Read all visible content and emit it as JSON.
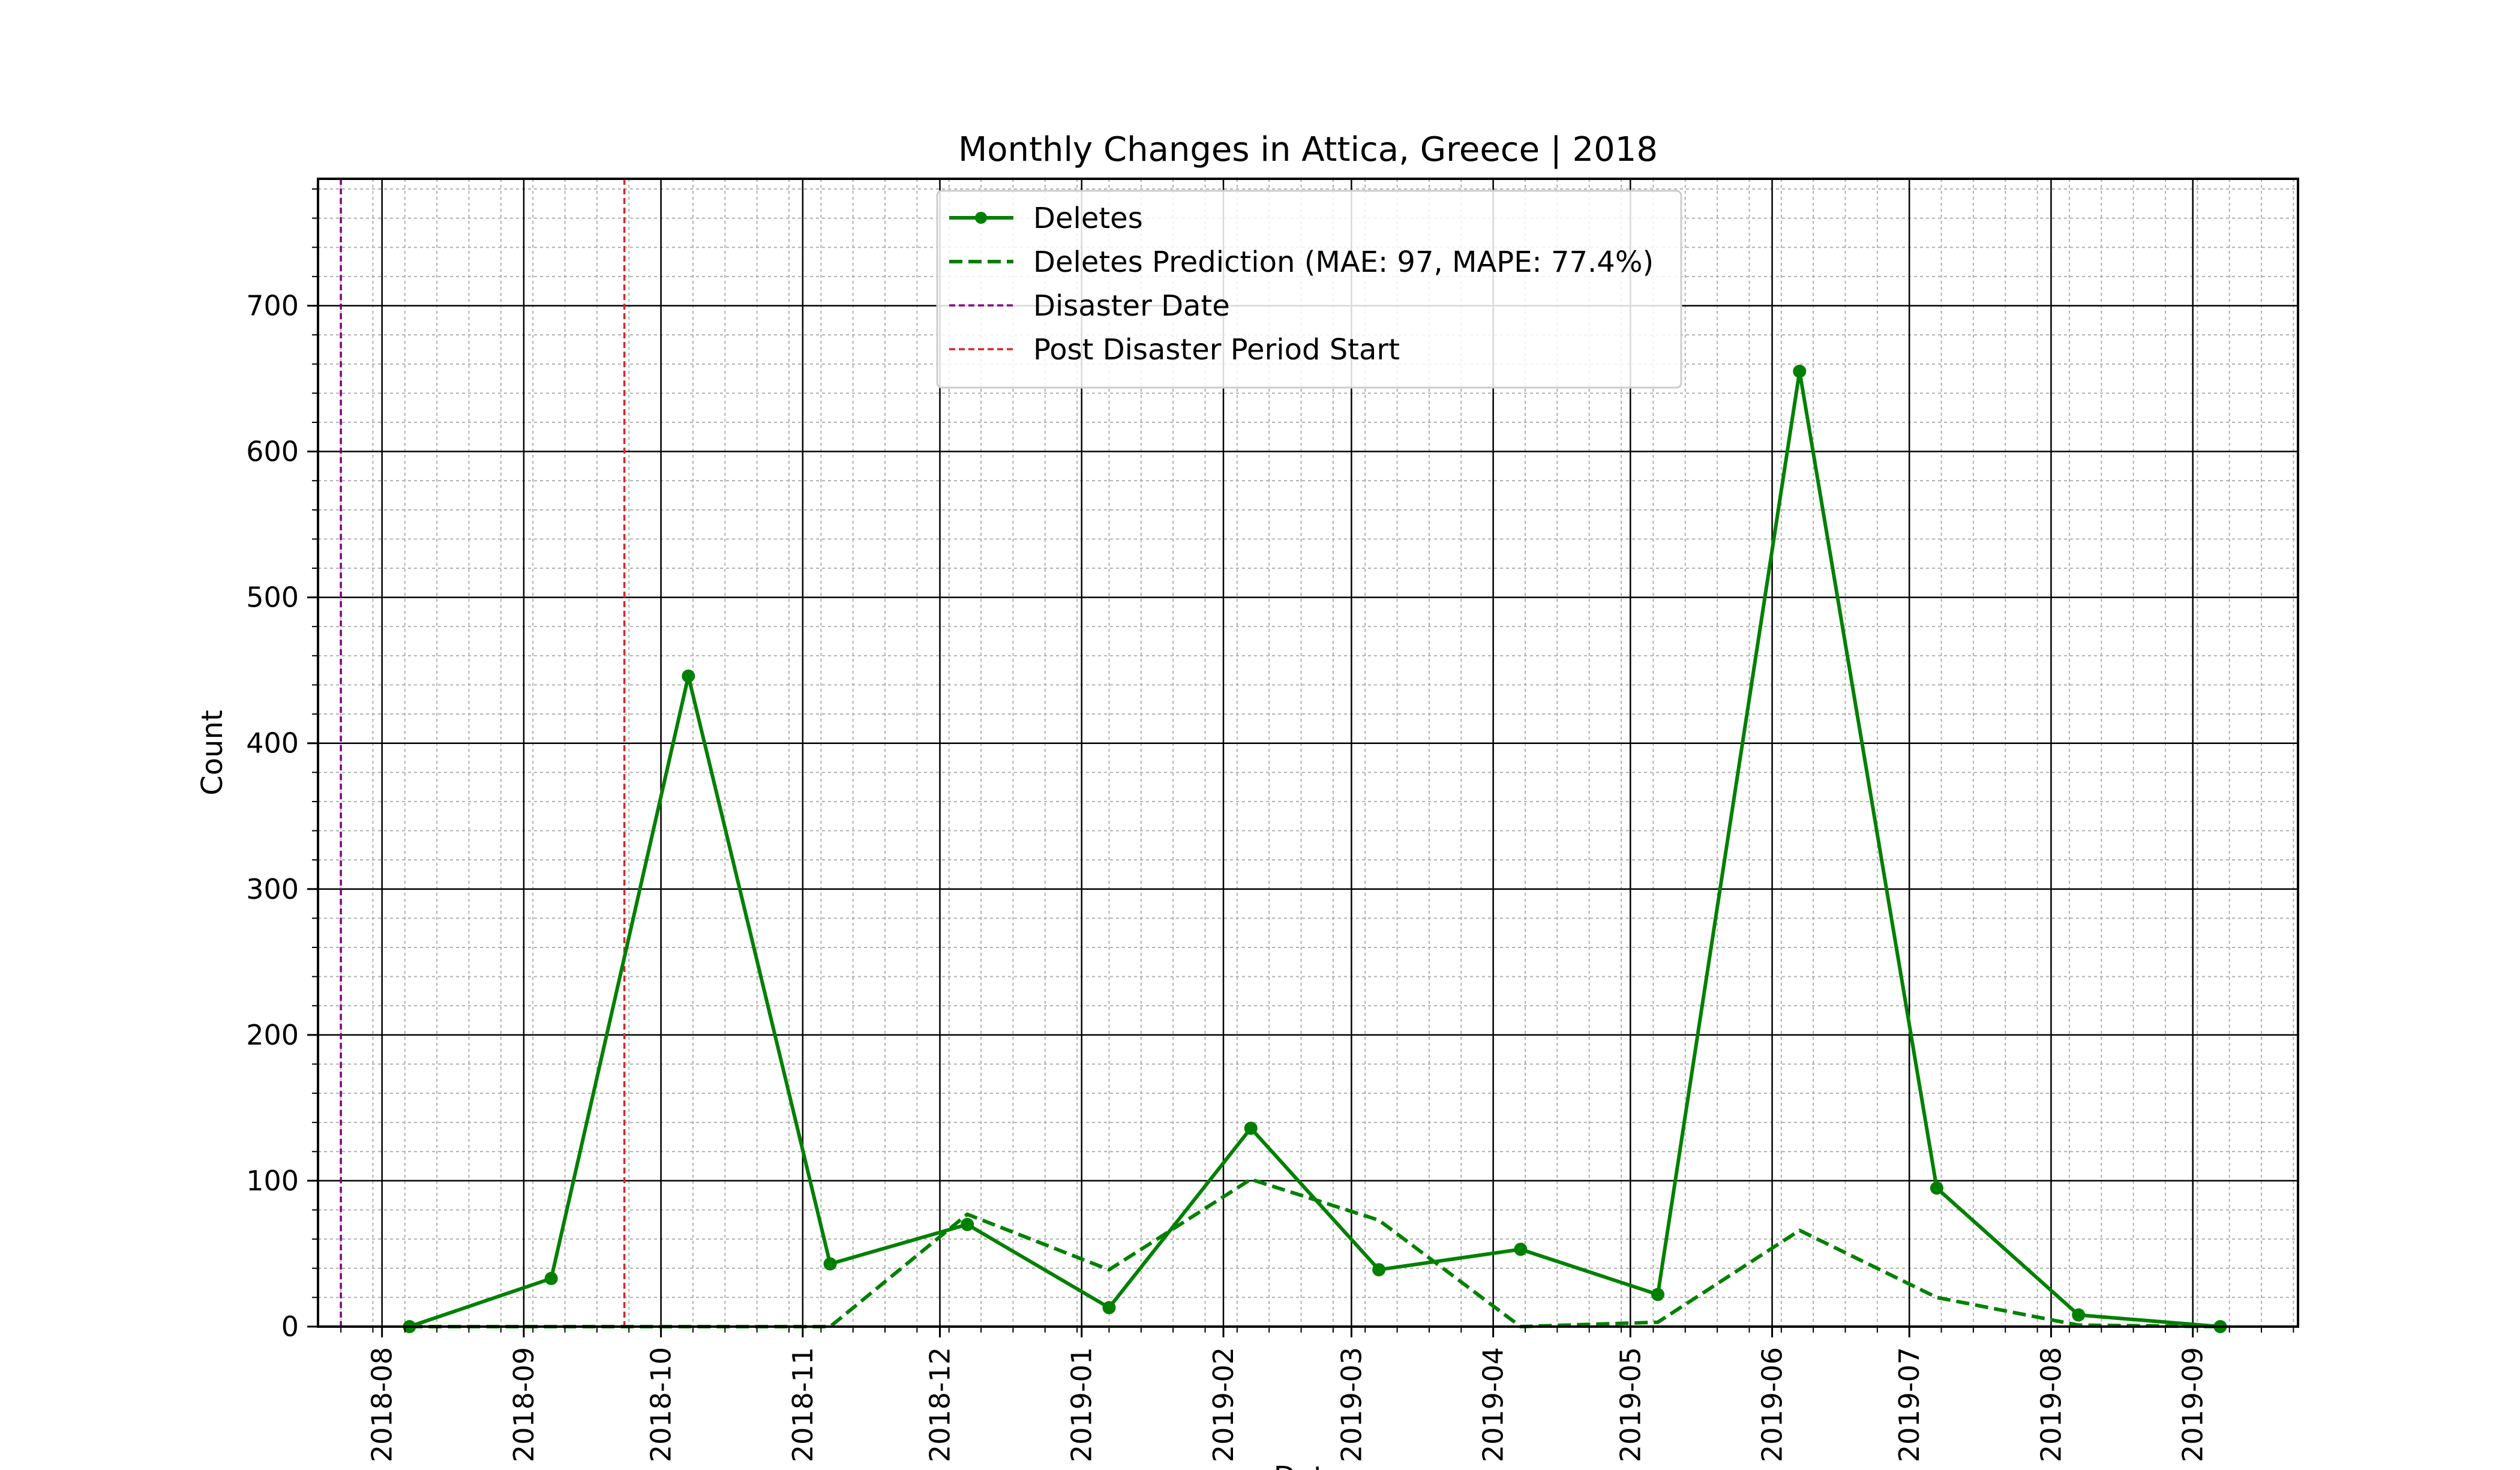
{
  "chart_data": {
    "type": "line",
    "title": "Monthly Changes in Attica, Greece | 2018",
    "xlabel": "Date",
    "ylabel": "Count",
    "xlim": [
      "2018-07-18",
      "2019-09-24"
    ],
    "ylim": [
      0,
      787
    ],
    "x_ticks": [
      "2018-08",
      "2018-09",
      "2018-10",
      "2018-11",
      "2018-12",
      "2019-01",
      "2019-02",
      "2019-03",
      "2019-04",
      "2019-05",
      "2019-06",
      "2019-07",
      "2019-08",
      "2019-09"
    ],
    "y_ticks": [
      0,
      100,
      200,
      300,
      400,
      500,
      600,
      700
    ],
    "grid": true,
    "minor_grid": true,
    "legend_position": "upper-center",
    "colors": {
      "deletes": "#008000",
      "prediction": "#008000",
      "disaster_date": "#800080",
      "post_disaster": "#d62728",
      "grid_major": "#000000",
      "grid_minor": "#b0b0b0"
    },
    "series": [
      {
        "name": "Deletes",
        "style": "solid-with-markers",
        "x": [
          "2018-08-07",
          "2018-09-07",
          "2018-10-07",
          "2018-11-07",
          "2018-12-07",
          "2019-01-07",
          "2019-02-07",
          "2019-03-07",
          "2019-04-07",
          "2019-05-07",
          "2019-06-07",
          "2019-07-07",
          "2019-08-07",
          "2019-09-07"
        ],
        "y": [
          0,
          33,
          446,
          43,
          70,
          13,
          136,
          39,
          53,
          22,
          655,
          95,
          8,
          0
        ]
      },
      {
        "name": "Deletes Prediction (MAE: 97, MAPE: 77.4%)",
        "style": "dashed",
        "x": [
          "2018-08-07",
          "2018-09-07",
          "2018-10-07",
          "2018-11-07",
          "2018-12-07",
          "2019-01-07",
          "2019-02-07",
          "2019-03-07",
          "2019-04-07",
          "2019-05-07",
          "2019-06-07",
          "2019-07-07",
          "2019-08-07",
          "2019-09-07"
        ],
        "y": [
          0,
          0,
          0,
          0,
          77,
          39,
          101,
          73,
          0,
          3,
          66,
          20,
          1,
          0
        ]
      }
    ],
    "vertical_lines": [
      {
        "name": "Disaster Date",
        "x": "2018-07-23",
        "style": "dashed"
      },
      {
        "name": "Post Disaster Period Start",
        "x": "2018-09-23",
        "style": "dashed"
      }
    ]
  }
}
